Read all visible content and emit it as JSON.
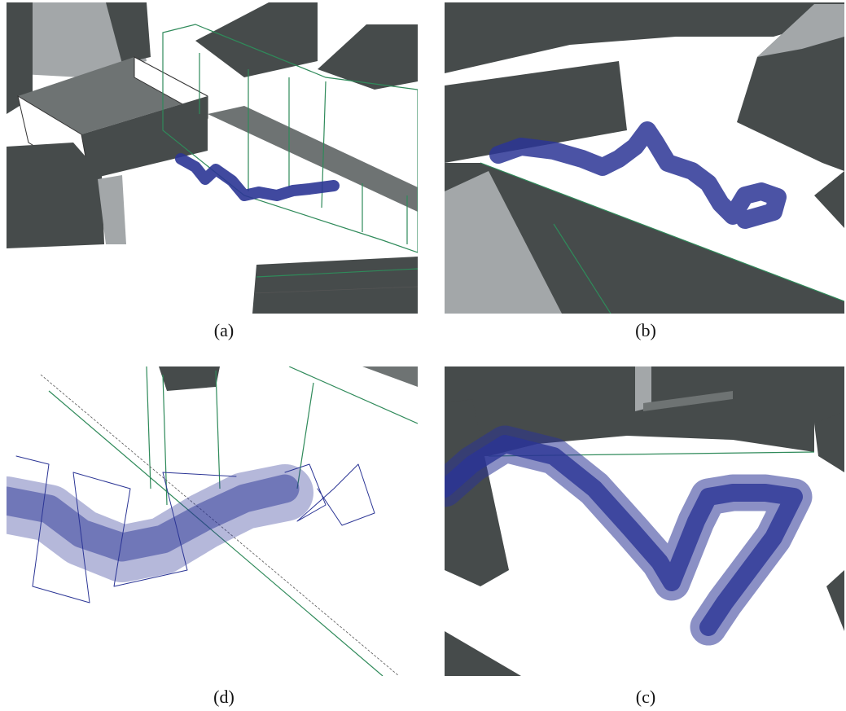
{
  "figure": {
    "panels": [
      {
        "caption": "(a)"
      },
      {
        "caption": "(b)"
      },
      {
        "caption": "(d)"
      },
      {
        "caption": "(c)"
      }
    ]
  }
}
